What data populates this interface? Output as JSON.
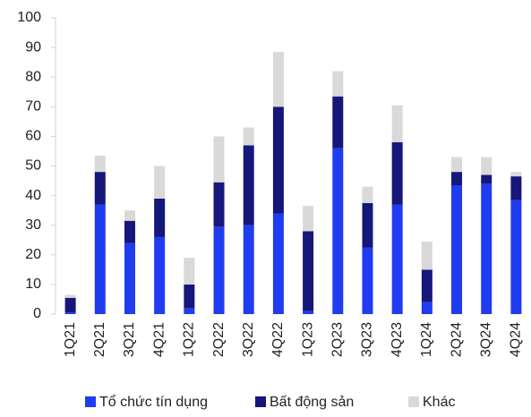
{
  "chart_data": {
    "type": "stacked_bar",
    "categories": [
      "1Q21",
      "2Q21",
      "3Q21",
      "4Q21",
      "1Q22",
      "2Q22",
      "3Q22",
      "4Q22",
      "1Q23",
      "2Q23",
      "3Q23",
      "4Q23",
      "1Q24",
      "2Q24",
      "3Q24",
      "4Q24"
    ],
    "series": [
      {
        "name": "Tổ chức tín dụng",
        "color": "#1f3cf0",
        "values": [
          0.5,
          37,
          24,
          26,
          2,
          29.5,
          30,
          34,
          1,
          56,
          22.5,
          37,
          4,
          43.5,
          44,
          38.5
        ]
      },
      {
        "name": "Bất động sản",
        "color": "#16177a",
        "values": [
          5,
          11,
          7.5,
          13,
          8,
          15,
          27,
          36,
          27,
          17.5,
          15,
          21,
          11,
          4.5,
          3,
          8
        ]
      },
      {
        "name": "Khác",
        "color": "#d9d9d9",
        "values": [
          1,
          5.5,
          3.5,
          11,
          9,
          15.5,
          6,
          18.5,
          8.5,
          8.5,
          5.5,
          12.5,
          9.5,
          5,
          6,
          1.5
        ]
      }
    ],
    "ylim": [
      0,
      100
    ],
    "yticks": [
      0,
      10,
      20,
      30,
      40,
      50,
      60,
      70,
      80,
      90,
      100
    ],
    "legend": "bottom"
  }
}
